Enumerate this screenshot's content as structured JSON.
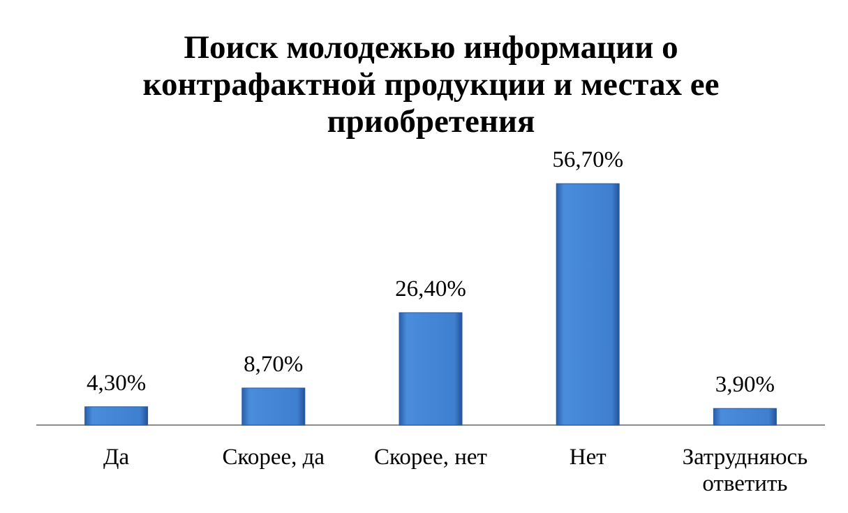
{
  "chart_data": {
    "type": "bar",
    "title": "Поиск молодежью информации о контрафактной продукции и местах ее приобретения",
    "categories": [
      "Да",
      "Скорее, да",
      "Скорее, нет",
      "Нет",
      "Затрудняюсь ответить"
    ],
    "values": [
      4.3,
      8.7,
      26.4,
      56.7,
      3.9
    ],
    "value_labels": [
      "4,30%",
      "8,70%",
      "26,40%",
      "56,70%",
      "3,90%"
    ],
    "color": "#3f7fd0"
  }
}
